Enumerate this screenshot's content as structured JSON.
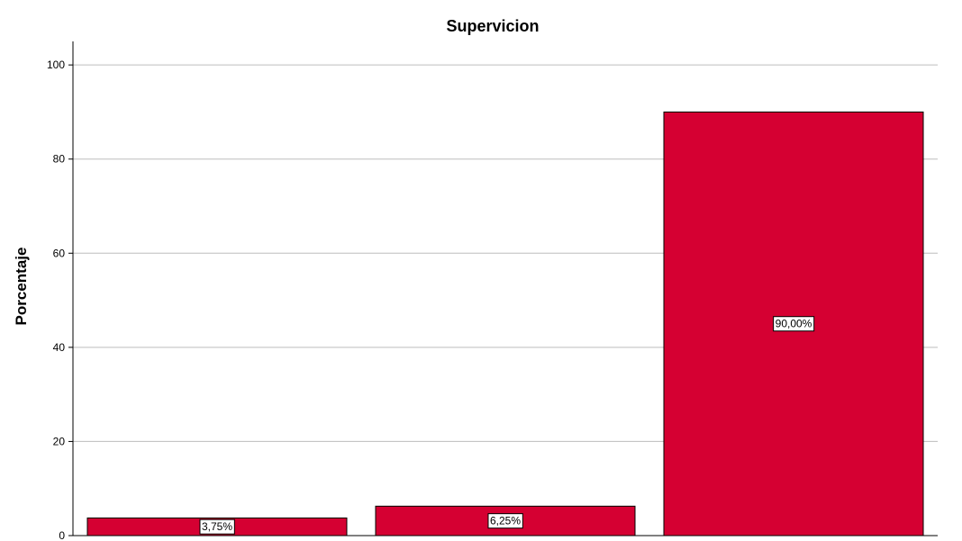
{
  "chart_data": {
    "type": "bar",
    "title": "Supervicion",
    "xlabel": "",
    "ylabel": "Porcentaje",
    "categories": [
      "",
      "",
      ""
    ],
    "values": [
      3.75,
      6.25,
      90.0
    ],
    "data_labels": [
      "3,75%",
      "6,25%",
      "90,00%"
    ],
    "ylim": [
      0,
      105
    ],
    "yticks": [
      0,
      20,
      40,
      60,
      80,
      100
    ],
    "ytick_labels": [
      "0",
      "20",
      "40",
      "60",
      "80",
      "100"
    ],
    "grid": true,
    "legend": "none",
    "colors": {
      "bar_fill": "#d50032",
      "bar_stroke": "#000000",
      "grid": "#bdbdbd",
      "axis": "#000000"
    }
  }
}
